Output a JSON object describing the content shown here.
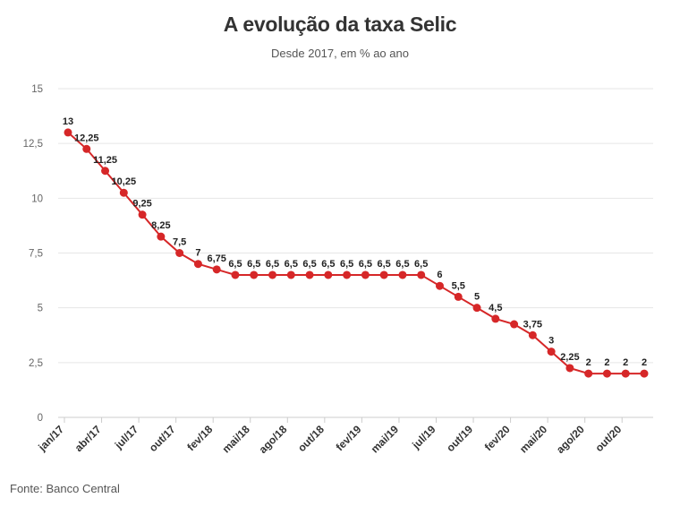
{
  "header": {
    "title": "A evolução da taxa Selic",
    "subtitle": "Desde 2017, em % ao ano"
  },
  "footer": {
    "source": "Fonte: Banco Central"
  },
  "colors": {
    "line": "#d62728",
    "grid": "#e6e6e6",
    "axis": "#cccccc"
  },
  "chart_data": {
    "type": "line",
    "title": "A evolução da taxa Selic",
    "subtitle": "Desde 2017, em % ao ano",
    "xlabel": "",
    "ylabel": "",
    "ylim": [
      0,
      15
    ],
    "yticks": [
      0,
      2.5,
      5,
      7.5,
      10,
      12.5,
      15
    ],
    "ytick_labels": [
      "0",
      "2,5",
      "5",
      "7,5",
      "10",
      "12,5",
      "15"
    ],
    "xtick_labels": [
      "jan/17",
      "abr/17",
      "jul/17",
      "out/17",
      "fev/18",
      "mai/18",
      "ago/18",
      "out/18",
      "fev/19",
      "mai/19",
      "jul/19",
      "out/19",
      "fev/20",
      "mai/20",
      "ago/20",
      "out/20"
    ],
    "grid": true,
    "series": [
      {
        "values": [
          13,
          12.25,
          11.25,
          10.25,
          9.25,
          8.25,
          7.5,
          7,
          6.75,
          6.5,
          6.5,
          6.5,
          6.5,
          6.5,
          6.5,
          6.5,
          6.5,
          6.5,
          6.5,
          6.5,
          6,
          5.5,
          5,
          4.5,
          4.25,
          3.75,
          3,
          2.25,
          2,
          2,
          2,
          2
        ],
        "labels": [
          "13",
          "12,25",
          "11,25",
          "10,25",
          "9,25",
          "8,25",
          "7,5",
          "7",
          "6,75",
          "6,5",
          "6,5",
          "6,5",
          "6,5",
          "6,5",
          "6,5",
          "6,5",
          "6,5",
          "6,5",
          "6,5",
          "6,5",
          "6",
          "5,5",
          "5",
          "4,5",
          "",
          "3,75",
          "3",
          "2,25",
          "2",
          "2",
          "2",
          "2"
        ]
      }
    ]
  }
}
